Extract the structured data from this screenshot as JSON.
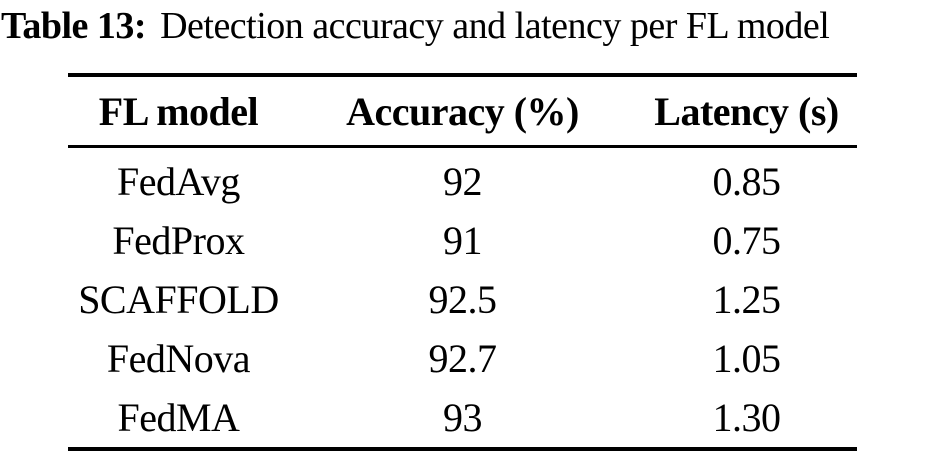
{
  "caption": {
    "label": "Table 13:",
    "text": "Detection accuracy and latency per FL model"
  },
  "table": {
    "columns": [
      "FL model",
      "Accuracy (%)",
      "Latency (s)"
    ],
    "rows": [
      {
        "model": "FedAvg",
        "accuracy": "92",
        "latency": "0.85"
      },
      {
        "model": "FedProx",
        "accuracy": "91",
        "latency": "0.75"
      },
      {
        "model": "SCAFFOLD",
        "accuracy": "92.5",
        "latency": "1.25"
      },
      {
        "model": "FedNova",
        "accuracy": "92.7",
        "latency": "1.05"
      },
      {
        "model": "FedMA",
        "accuracy": "93",
        "latency": "1.30"
      }
    ]
  },
  "chart_data": {
    "type": "table",
    "title": "Table 13: Detection accuracy and latency per FL model",
    "columns": [
      "FL model",
      "Accuracy (%)",
      "Latency (s)"
    ],
    "rows": [
      [
        "FedAvg",
        92,
        0.85
      ],
      [
        "FedProx",
        91,
        0.75
      ],
      [
        "SCAFFOLD",
        92.5,
        1.25
      ],
      [
        "FedNova",
        92.7,
        1.05
      ],
      [
        "FedMA",
        93,
        1.3
      ]
    ]
  },
  "colors": {
    "text": "#000000",
    "background": "#ffffff",
    "rule": "#000000"
  }
}
